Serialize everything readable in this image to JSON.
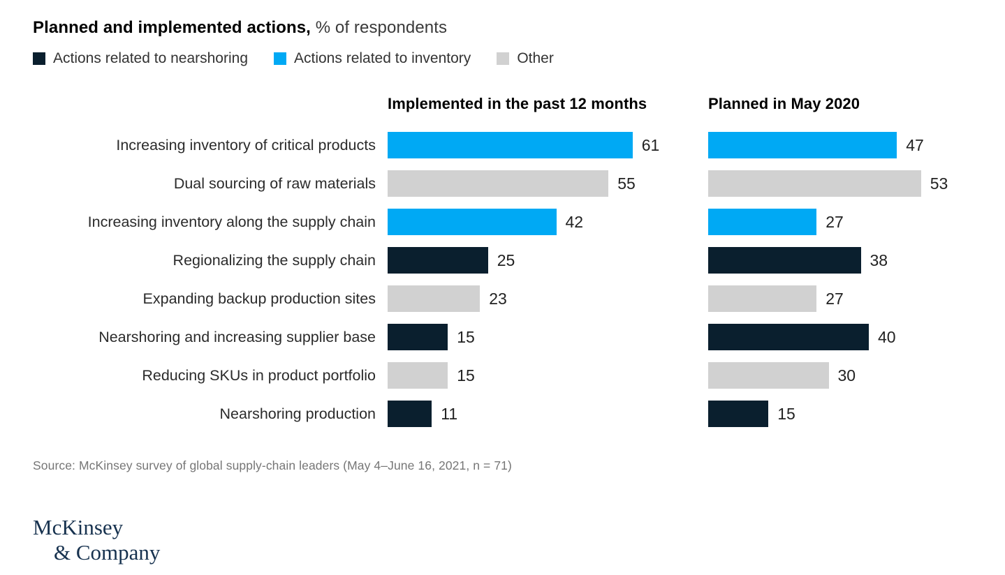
{
  "title": {
    "bold": "Planned and implemented actions,",
    "regular": " % of respondents"
  },
  "legend": [
    {
      "label": "Actions related to nearshoring",
      "color": "#0a1f2e"
    },
    {
      "label": "Actions related to inventory",
      "color": "#00a9f4"
    },
    {
      "label": "Other",
      "color": "#d1d1d1"
    }
  ],
  "columns": [
    "Implemented in the past 12 months",
    "Planned in May 2020"
  ],
  "chart_data": {
    "type": "bar",
    "orientation": "horizontal",
    "title": "Planned and implemented actions, % of respondents",
    "categories": [
      "Increasing inventory of critical products",
      "Dual sourcing of raw materials",
      "Increasing inventory along the supply chain",
      "Regionalizing the supply chain",
      "Expanding backup production sites",
      "Nearshoring and increasing supplier base",
      "Reducing SKUs in product portfolio",
      "Nearshoring production"
    ],
    "series": [
      {
        "name": "Implemented in the past 12 months",
        "values": [
          61,
          55,
          42,
          25,
          23,
          15,
          15,
          11
        ]
      },
      {
        "name": "Planned in May 2020",
        "values": [
          47,
          53,
          27,
          38,
          27,
          40,
          30,
          15
        ]
      }
    ],
    "category_groups": [
      "inventory",
      "other",
      "inventory",
      "nearshoring",
      "other",
      "nearshoring",
      "other",
      "nearshoring"
    ],
    "colors": {
      "nearshoring": "#0a1f2e",
      "inventory": "#00a9f4",
      "other": "#d1d1d1"
    },
    "xlim": [
      0,
      65
    ],
    "value_labels": true,
    "grid": false,
    "legend_position": "top"
  },
  "source": "Source: McKinsey survey of global supply-chain leaders (May 4–June 16, 2021, n = 71)",
  "logo": {
    "line1": "McKinsey",
    "line2": "& Company"
  }
}
